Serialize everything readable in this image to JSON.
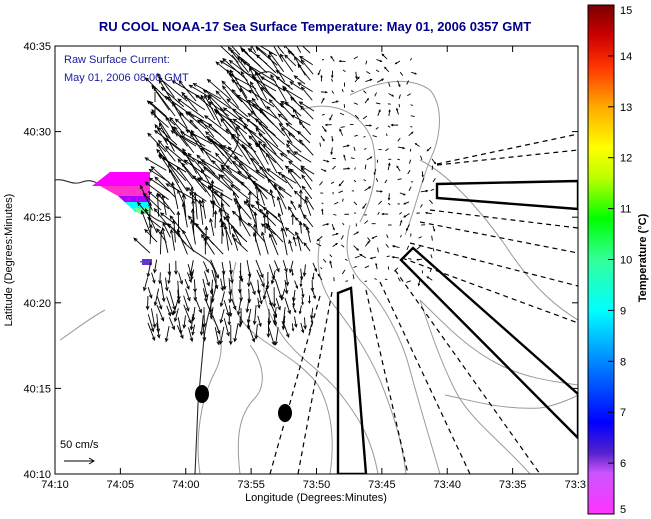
{
  "title": "RU COOL  NOAA-17  Sea Surface Temperature:  May 01, 2006 0357 GMT",
  "annotation": {
    "line1": "Raw Surface Current:",
    "line2": "May 01, 2006 08:00 GMT"
  },
  "scale_label": "50 cm/s",
  "axes": {
    "xlabel": "Longitude (Degrees:Minutes)",
    "ylabel": "Latitude (Degrees:Minutes)",
    "x_ticks": [
      "74:10",
      "74:05",
      "74:00",
      "73:55",
      "73:50",
      "73:45",
      "73:40",
      "73:35",
      "73:3"
    ],
    "y_ticks": [
      "40:35",
      "40:30",
      "40:25",
      "40:20",
      "40:15",
      "40:10"
    ]
  },
  "colorbar": {
    "label": "Temperature (°C)",
    "min": 5,
    "max": 15,
    "ticks": [
      "15",
      "14",
      "13",
      "12",
      "11",
      "10",
      "9",
      "8",
      "7",
      "6",
      "5"
    ]
  },
  "chart_data": {
    "type": "map",
    "xlim": [
      "74:10",
      "73:30"
    ],
    "ylim": [
      "40:10",
      "40:35"
    ],
    "colormap": [
      "#ff00ff",
      "#4b2ad8",
      "#0000ff",
      "#0096ff",
      "#00ffff",
      "#32ff96",
      "#00ff00",
      "#b4ff00",
      "#ffff00",
      "#ffb400",
      "#ff6400",
      "#ff0000",
      "#b40000",
      "#800000"
    ]
  }
}
